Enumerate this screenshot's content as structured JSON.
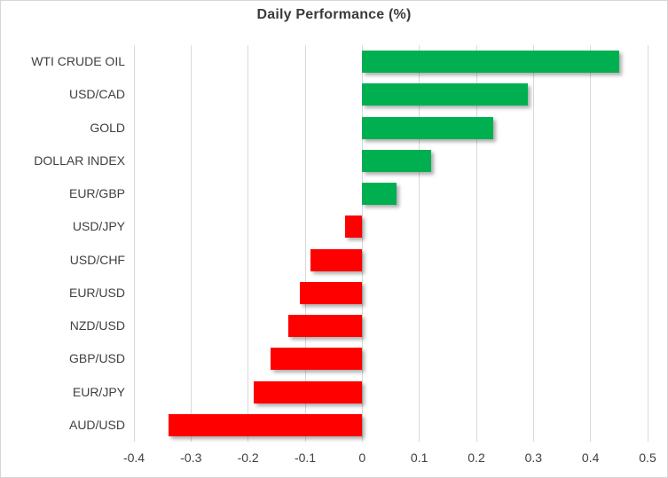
{
  "chart_data": {
    "type": "bar",
    "orientation": "horizontal",
    "title": "Daily Performance (%)",
    "categories": [
      "WTI CRUDE OIL",
      "USD/CAD",
      "GOLD",
      "DOLLAR INDEX",
      "EUR/GBP",
      "USD/JPY",
      "USD/CHF",
      "EUR/USD",
      "NZD/USD",
      "GBP/USD",
      "EUR/JPY",
      "AUD/USD"
    ],
    "values": [
      0.45,
      0.29,
      0.23,
      0.12,
      0.06,
      -0.03,
      -0.09,
      -0.11,
      -0.13,
      -0.16,
      -0.19,
      -0.34
    ],
    "xlim": [
      -0.4,
      0.5
    ],
    "xticks": [
      -0.4,
      -0.3,
      -0.2,
      -0.1,
      0,
      0.1,
      0.2,
      0.3,
      0.4,
      0.5
    ],
    "xtick_labels": [
      "-0.4",
      "-0.3",
      "-0.2",
      "-0.1",
      "0",
      "0.1",
      "0.2",
      "0.3",
      "0.4",
      "0.5"
    ],
    "grid": true,
    "legend": false,
    "colors": {
      "positive": "#00B050",
      "negative": "#FF0000",
      "gridline": "#D9D9D9",
      "text": "#404040",
      "title_text": "#3B3B3B",
      "border": "#D6D6D6",
      "background": "#FFFFFF"
    }
  }
}
